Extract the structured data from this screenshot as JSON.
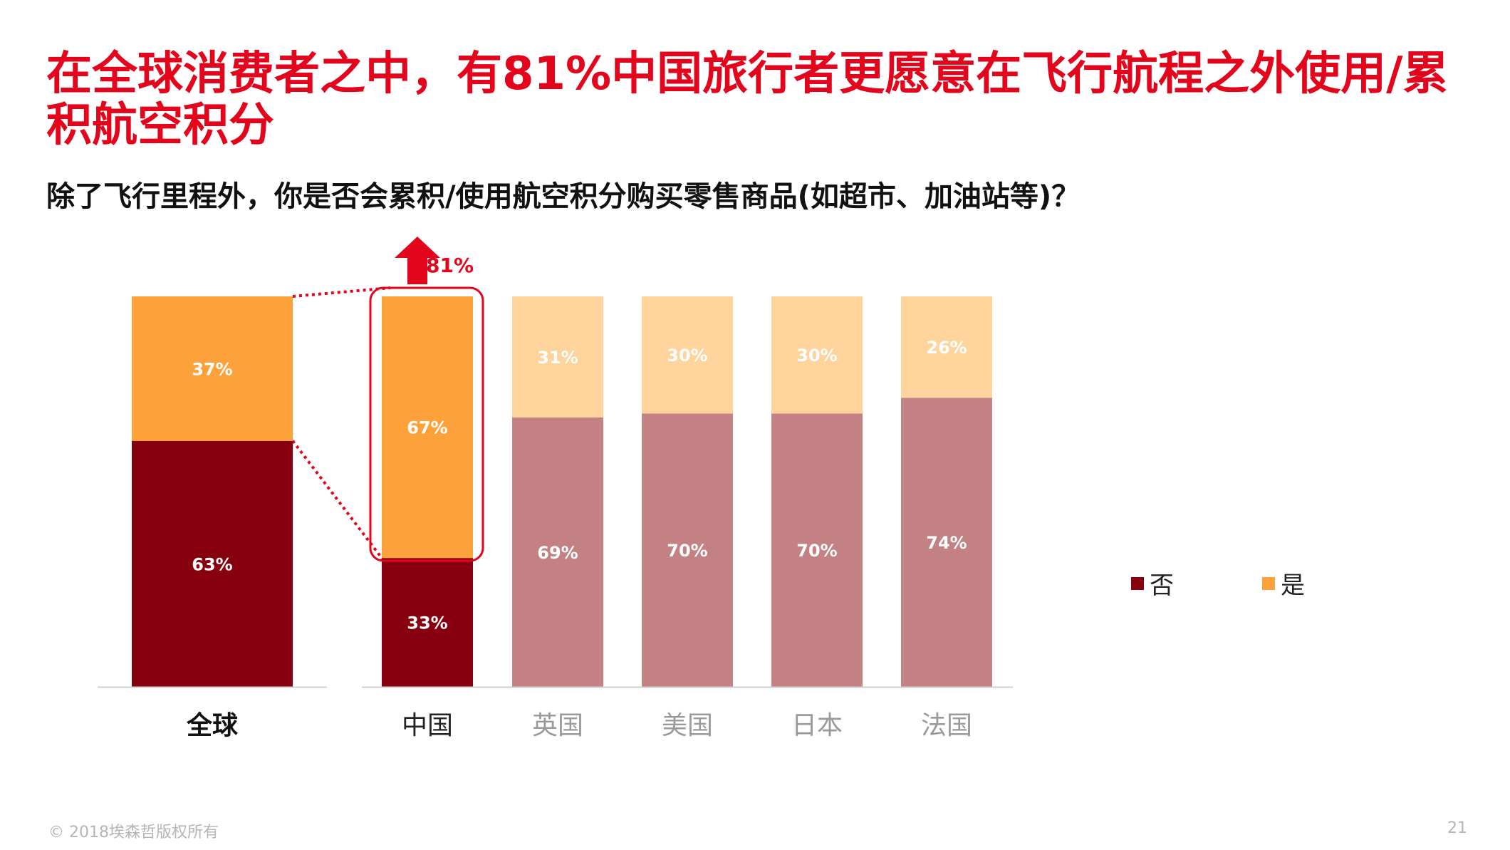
{
  "slide": {
    "title": "在全球消费者之中，有81%中国旅行者更愿意在飞行航程之外使用/累积航空积分",
    "subtitle": "除了飞行里程外，你是否会累积/使用航空积分购买零售商品(如超市、加油站等)？",
    "footer": "© 2018埃森哲版权所有",
    "page_number": "21"
  },
  "colors": {
    "no_strong": "#870010",
    "no_light": "#c48184",
    "yes_strong": "#fda23a",
    "yes_light": "#fed39c",
    "accent_red": "#e3051b"
  },
  "chart_data": {
    "type": "bar",
    "stacked": true,
    "percent_axis": true,
    "ylim": [
      0,
      100
    ],
    "categories": [
      "全球",
      "中国",
      "英国",
      "美国",
      "日本",
      "法国"
    ],
    "series": [
      {
        "name": "否",
        "values": [
          63,
          33,
          69,
          70,
          70,
          74
        ]
      },
      {
        "name": "是",
        "values": [
          37,
          67,
          31,
          30,
          30,
          26
        ]
      }
    ],
    "value_labels": {
      "否": [
        "63%",
        "33%",
        "69%",
        "70%",
        "70%",
        "74%"
      ],
      "是": [
        "37%",
        "67%",
        "31%",
        "30%",
        "30%",
        "26%"
      ]
    },
    "highlight": {
      "category": "中国",
      "label": "81%"
    },
    "legend": [
      "否",
      "是"
    ],
    "legend_position": "right",
    "grid": false
  }
}
